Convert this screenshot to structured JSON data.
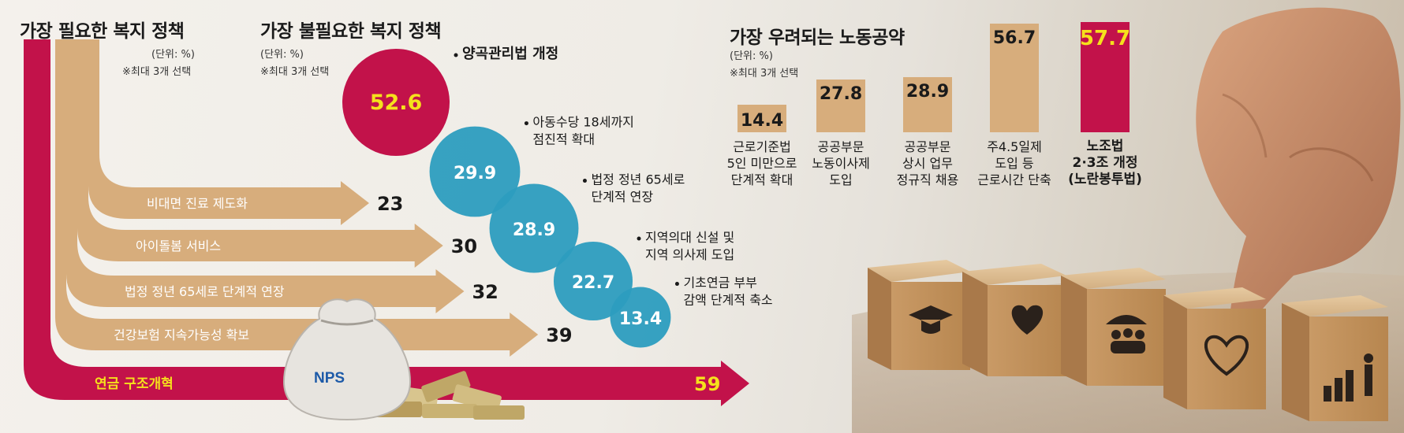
{
  "colors": {
    "tan": "#d7ad7c",
    "crimson": "#c2124a",
    "teal": "#2c9dbf",
    "yellow": "#f5e11c"
  },
  "needed": {
    "title": "가장 필요한 복지 정책",
    "unit": "(단위: %)",
    "note": "※최대 3개 선택",
    "logo_text": "NPS"
  },
  "unneeded": {
    "title": "가장 불필요한 복지 정책",
    "unit": "(단위: %)",
    "note": "※최대 3개 선택"
  },
  "labor": {
    "title": "가장 우려되는 노동공약",
    "unit": "(단위: %)",
    "note": "※최대 3개 선택"
  },
  "chart_data": [
    {
      "type": "bar",
      "title": "가장 필요한 복지 정책",
      "unit": "(단위: %)",
      "note": "※최대 3개 선택",
      "categories": [
        "비대면 진료 제도화",
        "아이돌봄 서비스",
        "법정 정년 65세로 단계적 연장",
        "건강보험 지속가능성 확보",
        "연금 구조개혁"
      ],
      "values": [
        23,
        30,
        32,
        39,
        59
      ],
      "highlight_index": 4
    },
    {
      "type": "scatter",
      "title": "가장 불필요한 복지 정책",
      "unit": "(단위: %)",
      "note": "※최대 3개 선택",
      "categories": [
        "양곡관리법 개정",
        "아동수당 18세까지 점진적 확대",
        "법정 정년 65세로 단계적 연장",
        "지역의대 신설 및 지역 의사제 도입",
        "기초연금 부부 감액 단계적 축소"
      ],
      "label_lines": [
        [
          "양곡관리법 개정"
        ],
        [
          "아동수당 18세까지",
          "점진적 확대"
        ],
        [
          "법정 정년 65세로",
          "단계적 연장"
        ],
        [
          "지역의대 신설 및",
          "지역 의사제 도입"
        ],
        [
          "기초연금 부부",
          "감액 단계적 축소"
        ]
      ],
      "values": [
        52.6,
        29.9,
        28.9,
        22.7,
        13.4
      ],
      "highlight_index": 0
    },
    {
      "type": "bar",
      "title": "가장 우려되는 노동공약",
      "unit": "(단위: %)",
      "note": "※최대 3개 선택",
      "categories": [
        "근로기준법 5인 미만으로 단계적 확대",
        "공공부문 노동이사제 도입",
        "공공부문 상시 업무 정규직 채용",
        "주4.5일제 도입 등 근로시간 단축",
        "노조법 2·3조 개정 (노란봉투법)"
      ],
      "label_lines": [
        [
          "근로기준법",
          "5인 미만으로",
          "단계적 확대"
        ],
        [
          "공공부문",
          "노동이사제",
          "도입"
        ],
        [
          "공공부문",
          "상시 업무",
          "정규직 채용"
        ],
        [
          "주4.5일제",
          "도입 등",
          "근로시간 단축"
        ],
        [
          "노조법",
          "2·3조 개정",
          "(노란봉투법)"
        ]
      ],
      "values": [
        14.4,
        27.8,
        28.9,
        56.7,
        57.7
      ],
      "highlight_index": 4,
      "ylim": [
        0,
        57.7
      ]
    }
  ]
}
